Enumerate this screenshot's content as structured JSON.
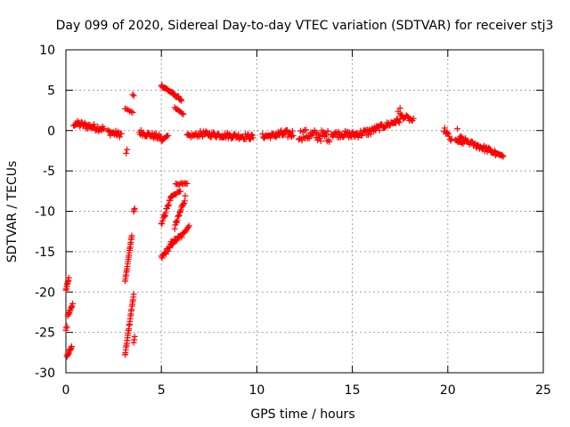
{
  "chart_data": {
    "type": "scatter",
    "title": "Day 099 of 2020, Sidereal Day-to-day VTEC variation (SDTVAR) for receiver stj3",
    "xlabel": "GPS time / hours",
    "ylabel": "SDTVAR / TECUs",
    "xlim": [
      0,
      25
    ],
    "ylim": [
      -30,
      10
    ],
    "xticks": [
      "0",
      "5",
      "10",
      "15",
      "20",
      "25"
    ],
    "yticks": [
      "10",
      "5",
      "0",
      "-5",
      "-10",
      "-15",
      "-20",
      "-25",
      "-30"
    ],
    "grid": true,
    "marker": "+",
    "color": "#ff0000",
    "series": [
      {
        "name": "SDTVAR",
        "segments": [
          {
            "x0": 0.0,
            "x1": 0.15,
            "y0": -19.8,
            "y1": -18.3,
            "n": 8
          },
          {
            "x0": 0.1,
            "x1": 0.35,
            "y0": -23.0,
            "y1": -21.5,
            "n": 10
          },
          {
            "x0": 0.0,
            "x1": 0.05,
            "y0": -24.8,
            "y1": -24.2,
            "n": 3
          },
          {
            "x0": 0.05,
            "x1": 0.3,
            "y0": -28.0,
            "y1": -26.8,
            "n": 10
          },
          {
            "x0": 0.4,
            "x1": 2.0,
            "y0": 0.9,
            "y1": 0.2,
            "n": 40,
            "jitter": 0.4
          },
          {
            "x0": 2.2,
            "x1": 2.9,
            "y0": -0.2,
            "y1": -0.5,
            "n": 18,
            "jitter": 0.35
          },
          {
            "x0": 3.15,
            "x1": 3.2,
            "y0": -2.8,
            "y1": -2.4,
            "n": 2
          },
          {
            "x0": 3.1,
            "x1": 3.55,
            "y0": -27.8,
            "y1": -20.3,
            "n": 26
          },
          {
            "x0": 3.1,
            "x1": 3.45,
            "y0": -18.7,
            "y1": -13.0,
            "n": 22
          },
          {
            "x0": 3.55,
            "x1": 3.6,
            "y0": -26.3,
            "y1": -25.5,
            "n": 3
          },
          {
            "x0": 3.55,
            "x1": 3.6,
            "y0": -10.0,
            "y1": -9.6,
            "n": 3
          },
          {
            "x0": 3.1,
            "x1": 3.5,
            "y0": 2.7,
            "y1": 2.2,
            "n": 6
          },
          {
            "x0": 3.5,
            "x1": 3.55,
            "y0": 4.5,
            "y1": 4.3,
            "n": 2
          },
          {
            "x0": 3.85,
            "x1": 5.0,
            "y0": -0.2,
            "y1": -0.9,
            "n": 30,
            "jitter": 0.35
          },
          {
            "x0": 5.0,
            "x1": 5.35,
            "y0": -1.3,
            "y1": -0.6,
            "n": 8
          },
          {
            "x0": 5.0,
            "x1": 6.05,
            "y0": 5.6,
            "y1": 3.8,
            "n": 30,
            "jitter": 0.15
          },
          {
            "x0": 5.7,
            "x1": 6.15,
            "y0": 2.8,
            "y1": 2.0,
            "n": 8
          },
          {
            "x0": 5.0,
            "x1": 5.6,
            "y0": -15.8,
            "y1": -13.9,
            "n": 16,
            "jitter": 0.3
          },
          {
            "x0": 5.5,
            "x1": 6.2,
            "y0": -14.0,
            "y1": -12.8,
            "n": 16,
            "jitter": 0.3
          },
          {
            "x0": 6.2,
            "x1": 6.45,
            "y0": -12.6,
            "y1": -11.8,
            "n": 6
          },
          {
            "x0": 5.0,
            "x1": 5.55,
            "y0": -11.5,
            "y1": -8.0,
            "n": 18,
            "jitter": 0.3
          },
          {
            "x0": 5.5,
            "x1": 6.0,
            "y0": -8.2,
            "y1": -7.5,
            "n": 10
          },
          {
            "x0": 5.7,
            "x1": 6.25,
            "y0": -12.0,
            "y1": -8.3,
            "n": 18,
            "jitter": 0.3
          },
          {
            "x0": 5.75,
            "x1": 6.35,
            "y0": -6.6,
            "y1": -6.6,
            "n": 10
          },
          {
            "x0": 6.35,
            "x1": 7.0,
            "y0": -0.7,
            "y1": -0.5,
            "n": 14,
            "jitter": 0.25
          },
          {
            "x0": 7.0,
            "x1": 9.8,
            "y0": -0.4,
            "y1": -0.8,
            "n": 70,
            "jitter": 0.35
          },
          {
            "x0": 10.3,
            "x1": 11.0,
            "y0": -0.7,
            "y1": -0.6,
            "n": 18,
            "jitter": 0.3
          },
          {
            "x0": 11.0,
            "x1": 11.9,
            "y0": -0.5,
            "y1": -0.4,
            "n": 24,
            "jitter": 0.5
          },
          {
            "x0": 12.2,
            "x1": 13.8,
            "y0": -0.5,
            "y1": -0.7,
            "n": 40,
            "jitter": 0.7
          },
          {
            "x0": 13.9,
            "x1": 14.9,
            "y0": -0.4,
            "y1": -0.5,
            "n": 26,
            "jitter": 0.4
          },
          {
            "x0": 14.9,
            "x1": 16.0,
            "y0": -0.6,
            "y1": -0.1,
            "n": 28,
            "jitter": 0.45
          },
          {
            "x0": 16.0,
            "x1": 17.5,
            "y0": 0.0,
            "y1": 1.3,
            "n": 36,
            "jitter": 0.35
          },
          {
            "x0": 17.5,
            "x1": 18.2,
            "y0": 1.9,
            "y1": 1.2,
            "n": 14,
            "jitter": 0.3
          },
          {
            "x0": 17.4,
            "x1": 17.5,
            "y0": 2.3,
            "y1": 2.7,
            "n": 2
          },
          {
            "x0": 19.8,
            "x1": 20.2,
            "y0": 0.2,
            "y1": -1.3,
            "n": 10,
            "jitter": 0.3
          },
          {
            "x0": 20.5,
            "x1": 20.55,
            "y0": 0.2,
            "y1": 0.2,
            "n": 1
          },
          {
            "x0": 20.4,
            "x1": 20.8,
            "y0": -1.2,
            "y1": -1.6,
            "n": 8
          },
          {
            "x0": 20.6,
            "x1": 21.5,
            "y0": -0.9,
            "y1": -1.9,
            "n": 18,
            "jitter": 0.3
          },
          {
            "x0": 21.5,
            "x1": 22.5,
            "y0": -1.8,
            "y1": -2.8,
            "n": 26,
            "jitter": 0.35
          },
          {
            "x0": 22.5,
            "x1": 22.9,
            "y0": -2.8,
            "y1": -3.2,
            "n": 10
          }
        ]
      }
    ]
  }
}
